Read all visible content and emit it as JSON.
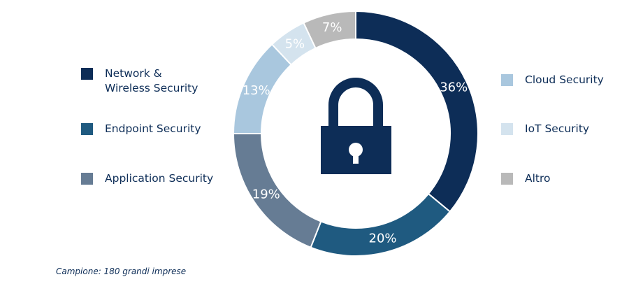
{
  "chart_data": {
    "type": "pie",
    "donut": true,
    "series": [
      {
        "name": "Network &\nWireless Security",
        "value": 36,
        "label": "36%",
        "color": "#0d2d57",
        "label_color": "#ffffff"
      },
      {
        "name": "Endpoint Security",
        "value": 20,
        "label": "20%",
        "color": "#1f5a80",
        "label_color": "#ffffff"
      },
      {
        "name": "Application Security",
        "value": 19,
        "label": "19%",
        "color": "#667c94",
        "label_color": "#ffffff"
      },
      {
        "name": "Cloud Security",
        "value": 13,
        "label": "13%",
        "color": "#a9c7de",
        "label_color": "#ffffff"
      },
      {
        "name": "IoT Security",
        "value": 5,
        "label": "5%",
        "color": "#d4e3ee",
        "label_color": "#ffffff"
      },
      {
        "name": "Altro",
        "value": 7,
        "label": "7%",
        "color": "#b9b9b9",
        "label_color": "#ffffff"
      }
    ],
    "legend_position": "left and right",
    "center_icon": "padlock-icon",
    "center_icon_color": "#0d2d57"
  },
  "footnote": "Campione: 180 grandi imprese"
}
